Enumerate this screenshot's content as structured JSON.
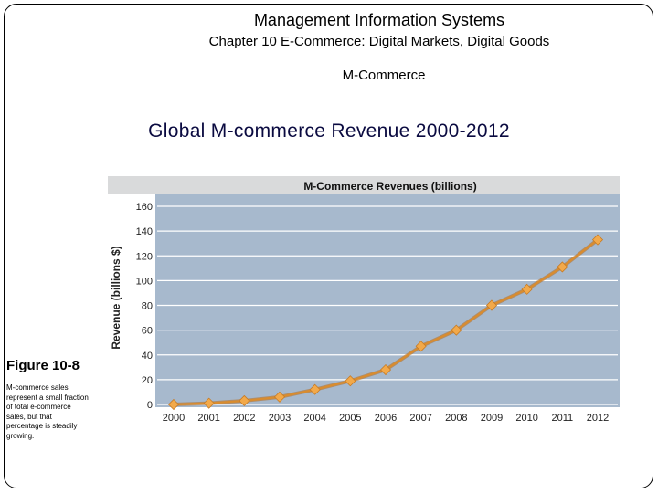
{
  "slide": {
    "title": "Management Information Systems",
    "chapter": "Chapter 10 E-Commerce: Digital Markets, Digital Goods",
    "section": "M-Commerce",
    "heading": "Global M-commerce Revenue 2000-2012",
    "figure_label": "Figure 10-8",
    "caption": "M-commerce sales represent a small fraction of total e-commerce sales, but that percentage is steadily growing."
  },
  "colors": {
    "plot_bg": "#a7b9cd",
    "title_band": "#d9dadb",
    "line": "#d98c2e",
    "marker": "#f2a94a"
  },
  "chart_data": {
    "type": "line",
    "title": "M-Commerce Revenues (billions)",
    "xlabel": "",
    "ylabel": "Revenue (billions $)",
    "categories": [
      "2000",
      "2001",
      "2002",
      "2003",
      "2004",
      "2005",
      "2006",
      "2007",
      "2008",
      "2009",
      "2010",
      "2011",
      "2012"
    ],
    "series": [
      {
        "name": "M-Commerce Revenues",
        "values": [
          0,
          1,
          3,
          6,
          12,
          19,
          28,
          47,
          60,
          80,
          93,
          111,
          133
        ]
      }
    ],
    "yticks": [
      "0",
      "20",
      "40",
      "60",
      "80",
      "100",
      "120",
      "140",
      "160"
    ],
    "ylim": [
      0,
      160
    ],
    "grid": true
  }
}
